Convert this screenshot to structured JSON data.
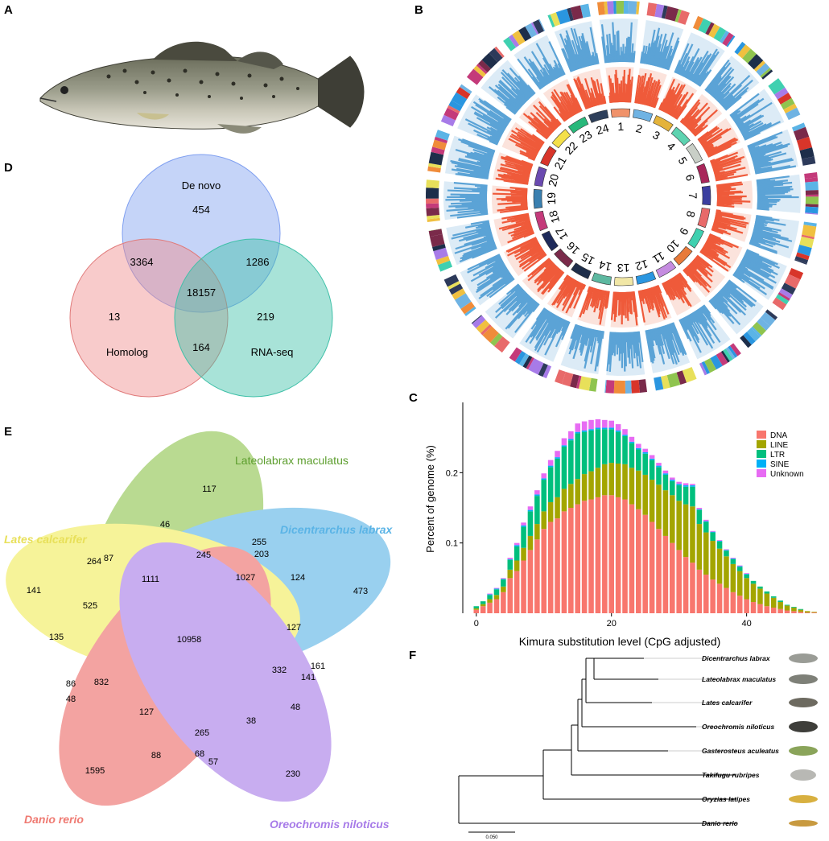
{
  "panels": {
    "a": "A",
    "b": "B",
    "c": "C",
    "d": "D",
    "e": "E",
    "f": "F"
  },
  "colors": {
    "blue": "#5ba3d6",
    "red": "#ef5a3a",
    "venn_blue": "#7f9ff0",
    "venn_red": "#f08c8c",
    "venn_teal": "#3fc0a8",
    "dna": "#f8766d",
    "line": "#a3a500",
    "ltr": "#00bf7d",
    "sine": "#00b0f6",
    "unknown": "#e76bf3",
    "e_yellow": "#f2ec5c",
    "e_green": "#8fc44f",
    "e_blue": "#6fb3e3",
    "e_red": "#ec6b68",
    "e_purple": "#a77be8"
  },
  "panel_d": {
    "sets": [
      {
        "name": "De novo",
        "color": "#7f9ff0"
      },
      {
        "name": "Homolog",
        "color": "#f08c8c"
      },
      {
        "name": "RNA-seq",
        "color": "#3fc0a8"
      }
    ],
    "regions": {
      "denovo_only": "454",
      "homolog_only": "13",
      "rnaseq_only": "219",
      "denovo_homolog": "3364",
      "denovo_rnaseq": "1286",
      "homolog_rnaseq": "164",
      "all": "18157"
    }
  },
  "panel_e": {
    "species": [
      {
        "name": "Lateolabrax maculatus",
        "color": "#5d9e2e"
      },
      {
        "name": "Dicentrarchus labrax",
        "color": "#5bb4e6"
      },
      {
        "name": "Lates calcarifer",
        "color": "#e8e05a"
      },
      {
        "name": "Danio rerio",
        "color": "#ef7a72"
      },
      {
        "name": "Oreochromis niloticus",
        "color": "#a77be8"
      }
    ],
    "numbers": [
      "117",
      "46",
      "255",
      "203",
      "245",
      "264",
      "87",
      "1111",
      "1027",
      "124",
      "473",
      "141",
      "525",
      "135",
      "10958",
      "127",
      "332",
      "161",
      "141",
      "86",
      "832",
      "48",
      "48",
      "127",
      "265",
      "38",
      "88",
      "68",
      "57",
      "1595",
      "230"
    ]
  },
  "panel_b": {
    "chromosomes": [
      "1",
      "2",
      "3",
      "4",
      "5",
      "6",
      "7",
      "8",
      "9",
      "10",
      "11",
      "12",
      "13",
      "14",
      "15",
      "16",
      "17",
      "18",
      "19",
      "20",
      "21",
      "22",
      "23",
      "24"
    ],
    "chrom_colors": [
      "#f0926a",
      "#6fb3e3",
      "#e4b33a",
      "#5dd3b0",
      "#c9cfc7",
      "#a8265a",
      "#3b3fa0",
      "#e86a6a",
      "#3fd0b0",
      "#e87a3a",
      "#c58ce0",
      "#2a96e0",
      "#f1e7a6",
      "#5db8a0",
      "#1e2e4a",
      "#7a2a4a",
      "#1e2a5a",
      "#c43a7a",
      "#3a80b0",
      "#6a4ab0",
      "#d8352a",
      "#f4e04a",
      "#28b87a",
      "#2e3f5a"
    ]
  },
  "chart_data": {
    "type": "bar",
    "title": "",
    "xlabel": "Kimura substitution level (CpG adjusted)",
    "ylabel": "Percent of genome (%)",
    "xlim": [
      -2,
      51
    ],
    "ylim": [
      0,
      0.3
    ],
    "x_ticks": [
      "0",
      "20",
      "40"
    ],
    "y_ticks": [
      "0.1",
      "0.2"
    ],
    "legend": "top-right",
    "categories": [
      0,
      1,
      2,
      3,
      4,
      5,
      6,
      7,
      8,
      9,
      10,
      11,
      12,
      13,
      14,
      15,
      16,
      17,
      18,
      19,
      20,
      21,
      22,
      23,
      24,
      25,
      26,
      27,
      28,
      29,
      30,
      31,
      32,
      33,
      34,
      35,
      36,
      37,
      38,
      39,
      40,
      41,
      42,
      43,
      44,
      45,
      46,
      47,
      48,
      49,
      50
    ],
    "series": [
      {
        "name": "DNA",
        "color": "#f8766d",
        "values": [
          0.005,
          0.01,
          0.015,
          0.02,
          0.03,
          0.05,
          0.06,
          0.075,
          0.09,
          0.105,
          0.12,
          0.13,
          0.135,
          0.145,
          0.15,
          0.155,
          0.16,
          0.162,
          0.165,
          0.168,
          0.168,
          0.165,
          0.162,
          0.155,
          0.148,
          0.14,
          0.13,
          0.12,
          0.11,
          0.1,
          0.09,
          0.08,
          0.072,
          0.062,
          0.055,
          0.048,
          0.042,
          0.036,
          0.03,
          0.025,
          0.02,
          0.016,
          0.013,
          0.01,
          0.008,
          0.006,
          0.004,
          0.003,
          0.002,
          0.001,
          0.001
        ]
      },
      {
        "name": "LINE",
        "color": "#a3a500",
        "values": [
          0.002,
          0.003,
          0.005,
          0.006,
          0.008,
          0.012,
          0.015,
          0.018,
          0.02,
          0.022,
          0.025,
          0.028,
          0.03,
          0.032,
          0.034,
          0.036,
          0.038,
          0.04,
          0.042,
          0.044,
          0.046,
          0.048,
          0.05,
          0.052,
          0.055,
          0.057,
          0.06,
          0.063,
          0.065,
          0.068,
          0.07,
          0.075,
          0.08,
          0.065,
          0.06,
          0.055,
          0.05,
          0.045,
          0.04,
          0.035,
          0.03,
          0.026,
          0.022,
          0.018,
          0.014,
          0.01,
          0.007,
          0.005,
          0.003,
          0.002,
          0.001
        ]
      },
      {
        "name": "LTR",
        "color": "#00bf7d",
        "values": [
          0.003,
          0.004,
          0.006,
          0.008,
          0.01,
          0.014,
          0.02,
          0.03,
          0.035,
          0.04,
          0.045,
          0.05,
          0.055,
          0.06,
          0.062,
          0.065,
          0.06,
          0.058,
          0.055,
          0.05,
          0.048,
          0.045,
          0.04,
          0.035,
          0.03,
          0.03,
          0.028,
          0.025,
          0.022,
          0.02,
          0.022,
          0.025,
          0.028,
          0.02,
          0.015,
          0.012,
          0.01,
          0.008,
          0.007,
          0.006,
          0.005,
          0.004,
          0.003,
          0.003,
          0.002,
          0.002,
          0.001,
          0.001,
          0.001,
          0.0,
          0.0
        ]
      },
      {
        "name": "SINE",
        "color": "#00b0f6",
        "values": [
          0.0,
          0.0,
          0.001,
          0.001,
          0.001,
          0.001,
          0.002,
          0.002,
          0.002,
          0.002,
          0.002,
          0.002,
          0.002,
          0.002,
          0.002,
          0.002,
          0.002,
          0.002,
          0.002,
          0.002,
          0.002,
          0.002,
          0.002,
          0.002,
          0.002,
          0.002,
          0.002,
          0.002,
          0.002,
          0.002,
          0.002,
          0.002,
          0.002,
          0.001,
          0.001,
          0.001,
          0.001,
          0.001,
          0.001,
          0.001,
          0.001,
          0.0,
          0.0,
          0.0,
          0.0,
          0.0,
          0.0,
          0.0,
          0.0,
          0.0,
          0.0
        ]
      },
      {
        "name": "Unknown",
        "color": "#e76bf3",
        "values": [
          0.0,
          0.0,
          0.001,
          0.001,
          0.001,
          0.002,
          0.003,
          0.004,
          0.005,
          0.006,
          0.007,
          0.008,
          0.009,
          0.01,
          0.011,
          0.012,
          0.013,
          0.013,
          0.012,
          0.011,
          0.01,
          0.009,
          0.008,
          0.007,
          0.006,
          0.005,
          0.005,
          0.004,
          0.004,
          0.003,
          0.003,
          0.003,
          0.002,
          0.002,
          0.002,
          0.001,
          0.001,
          0.001,
          0.001,
          0.001,
          0.001,
          0.0,
          0.0,
          0.0,
          0.0,
          0.0,
          0.0,
          0.0,
          0.0,
          0.0,
          0.0
        ]
      }
    ]
  },
  "panel_f": {
    "taxa": [
      "Dicentrarchus labrax",
      "Lateolabrax maculatus",
      "Lates calcarifer",
      "Oreochromis niloticus",
      "Gasterosteus aculeatus",
      "Takifugu rubripes",
      "Oryzias latipes",
      "Danio rerio"
    ],
    "scale_label": "0.050"
  }
}
